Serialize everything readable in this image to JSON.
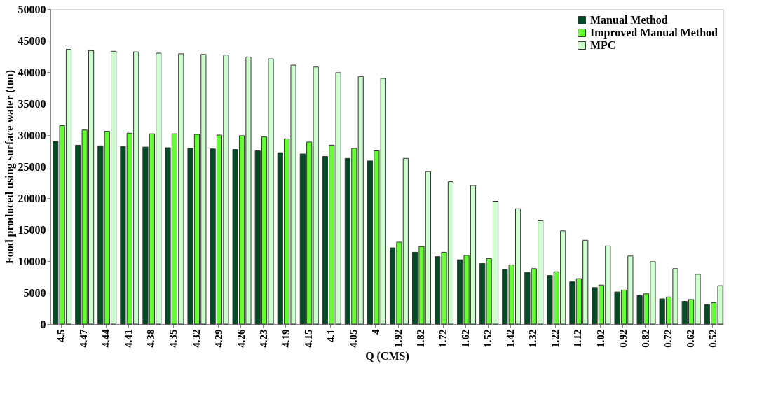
{
  "chart_data": {
    "type": "bar",
    "xlabel": "Q (CMS)",
    "ylabel": "Food produced using surface water (ton)",
    "categories": [
      "4.5",
      "4.47",
      "4.44",
      "4.41",
      "4.38",
      "4.35",
      "4.32",
      "4.29",
      "4.26",
      "4.23",
      "4.19",
      "4.15",
      "4.1",
      "4.05",
      "4",
      "1.92",
      "1.82",
      "1.72",
      "1.62",
      "1.52",
      "1.42",
      "1.32",
      "1.22",
      "1.12",
      "1.02",
      "0.92",
      "0.82",
      "0.72",
      "0.62",
      "0.52"
    ],
    "series": [
      {
        "name": "Manual Method",
        "color": "#004d25",
        "values": [
          29000,
          28400,
          28300,
          28200,
          28100,
          28000,
          27900,
          27800,
          27700,
          27500,
          27200,
          27000,
          26600,
          26300,
          25900,
          12100,
          11400,
          10700,
          10200,
          9600,
          8700,
          8200,
          7700,
          6700,
          5800,
          5100,
          4500,
          4000,
          3600,
          3100
        ]
      },
      {
        "name": "Improved Manual Method",
        "color": "#66ff33",
        "values": [
          31500,
          30800,
          30600,
          30300,
          30200,
          30200,
          30100,
          30000,
          29900,
          29700,
          29400,
          28900,
          28400,
          27900,
          27500,
          13000,
          12300,
          11400,
          10900,
          10400,
          9400,
          8800,
          8300,
          7200,
          6200,
          5400,
          4800,
          4300,
          3900,
          3400
        ]
      },
      {
        "name": "MPC",
        "color": "#ccffcc",
        "values": [
          43600,
          43400,
          43300,
          43200,
          43000,
          42900,
          42800,
          42700,
          42400,
          42100,
          41100,
          40800,
          39900,
          39300,
          39000,
          26300,
          24200,
          22600,
          22000,
          19500,
          18300,
          16400,
          14800,
          13300,
          12400,
          10800,
          9900,
          8800,
          7900,
          6100
        ]
      }
    ],
    "ylim": [
      0,
      50000
    ],
    "yticks": [
      0,
      5000,
      10000,
      15000,
      20000,
      25000,
      30000,
      35000,
      40000,
      45000,
      50000
    ],
    "grid": false,
    "legend": "top right"
  }
}
